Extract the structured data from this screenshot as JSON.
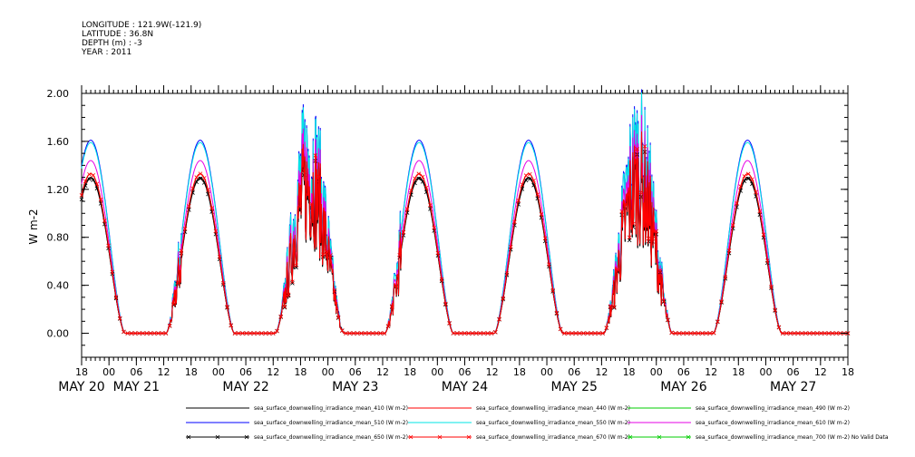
{
  "metadata": {
    "lines": [
      "LONGITUDE : 121.9W(-121.9)",
      "LATITUDE : 36.8N",
      "DEPTH (m) : -3",
      "YEAR : 2011"
    ]
  },
  "chart_data": {
    "type": "line",
    "ylabel": "W m-2",
    "ylim": [
      -0.2,
      2.0
    ],
    "yticks": [
      "0.00",
      "0.40",
      "0.80",
      "1.20",
      "1.60",
      "2.00"
    ],
    "ytick_values": [
      0.0,
      0.4,
      0.8,
      1.2,
      1.6,
      2.0
    ],
    "x_hour_range": [
      -6,
      162
    ],
    "x_ticks": [
      {
        "h": -6,
        "label": "18"
      },
      {
        "h": 0,
        "label": "00"
      },
      {
        "h": 6,
        "label": "06"
      },
      {
        "h": 12,
        "label": "12"
      },
      {
        "h": 18,
        "label": "18"
      },
      {
        "h": 24,
        "label": "00"
      },
      {
        "h": 30,
        "label": "06"
      },
      {
        "h": 36,
        "label": "12"
      },
      {
        "h": 42,
        "label": "18"
      },
      {
        "h": 48,
        "label": "00"
      },
      {
        "h": 54,
        "label": "06"
      },
      {
        "h": 60,
        "label": "12"
      },
      {
        "h": 66,
        "label": "18"
      },
      {
        "h": 72,
        "label": "00"
      },
      {
        "h": 78,
        "label": "06"
      },
      {
        "h": 84,
        "label": "12"
      },
      {
        "h": 90,
        "label": "18"
      },
      {
        "h": 96,
        "label": "00"
      },
      {
        "h": 102,
        "label": "06"
      },
      {
        "h": 108,
        "label": "12"
      },
      {
        "h": 114,
        "label": "18"
      },
      {
        "h": 120,
        "label": "00"
      },
      {
        "h": 126,
        "label": "06"
      },
      {
        "h": 132,
        "label": "12"
      },
      {
        "h": 138,
        "label": "18"
      },
      {
        "h": 144,
        "label": "00"
      },
      {
        "h": 150,
        "label": "06"
      },
      {
        "h": 156,
        "label": "12"
      },
      {
        "h": 162,
        "label": "18"
      }
    ],
    "date_labels": [
      {
        "h": -6,
        "label": "MAY 20"
      },
      {
        "h": 6,
        "label": "MAY 21"
      },
      {
        "h": 30,
        "label": "MAY 22"
      },
      {
        "h": 54,
        "label": "MAY 23"
      },
      {
        "h": 78,
        "label": "MAY 24"
      },
      {
        "h": 102,
        "label": "MAY 25"
      },
      {
        "h": 126,
        "label": "MAY 26"
      },
      {
        "h": 150,
        "label": "MAY 27"
      }
    ],
    "daily_peak_hours": [
      -4,
      20,
      44,
      68,
      92,
      116,
      140
    ],
    "series": [
      {
        "name": "sea_surface_downwelling_irradiance_mean_410 (W m-2)",
        "color": "#000000",
        "peak": 1.3,
        "marker": "none",
        "drawn": true
      },
      {
        "name": "sea_surface_downwelling_irradiance_mean_440 (W m-2)",
        "color": "#ff0000",
        "peak": 1.33,
        "marker": "none",
        "drawn": true
      },
      {
        "name": "sea_surface_downwelling_irradiance_mean_490 (W m-2)",
        "color": "#00cc00",
        "peak": 1.36,
        "marker": "none",
        "drawn": false
      },
      {
        "name": "sea_surface_downwelling_irradiance_mean_510 (W m-2)",
        "color": "#0000ff",
        "peak": 1.61,
        "marker": "none",
        "drawn": true
      },
      {
        "name": "sea_surface_downwelling_irradiance_mean_550 (W m-2)",
        "color": "#00e5e5",
        "peak": 1.59,
        "marker": "none",
        "drawn": true
      },
      {
        "name": "sea_surface_downwelling_irradiance_mean_610 (W m-2)",
        "color": "#e600e6",
        "peak": 1.44,
        "marker": "none",
        "drawn": true
      },
      {
        "name": "sea_surface_downwelling_irradiance_mean_650 (W m-2)",
        "color": "#000000",
        "peak": 1.29,
        "marker": "x",
        "drawn": true
      },
      {
        "name": "sea_surface_downwelling_irradiance_mean_670 (W m-2)",
        "color": "#ff0000",
        "peak": 1.33,
        "marker": "x",
        "drawn": true
      },
      {
        "name": "sea_surface_downwelling_irradiance_mean_700 (W m-2) No Valid Data",
        "color": "#00cc00",
        "peak": 0,
        "marker": "x",
        "drawn": false
      }
    ]
  }
}
